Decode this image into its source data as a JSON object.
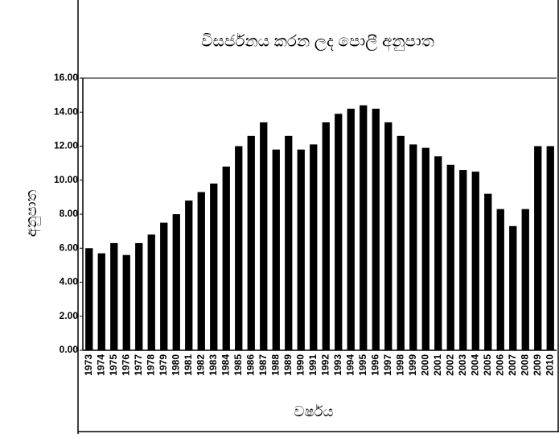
{
  "chart_data": {
    "type": "bar",
    "title": "විසර්ජනය කරන ලද පොලී අනුපාත",
    "x_label": "වර්ෂය",
    "y_label": "අනුපාත",
    "categories": [
      "1973",
      "1974",
      "1975",
      "1976",
      "1977",
      "1978",
      "1979",
      "1980",
      "1981",
      "1982",
      "1983",
      "1984",
      "1985",
      "1986",
      "1987",
      "1988",
      "1989",
      "1990",
      "1991",
      "1992",
      "1993",
      "1994",
      "1995",
      "1996",
      "1997",
      "1998",
      "1999",
      "2000",
      "2001",
      "2002",
      "2003",
      "2004",
      "2005",
      "2006",
      "2007",
      "2008",
      "2009",
      "2010"
    ],
    "values": [
      6.0,
      5.7,
      6.3,
      5.6,
      6.3,
      6.8,
      7.5,
      8.0,
      8.8,
      9.3,
      9.8,
      10.8,
      12.0,
      12.6,
      13.4,
      11.8,
      12.6,
      11.8,
      12.1,
      13.4,
      13.9,
      14.2,
      14.4,
      14.2,
      13.4,
      12.6,
      12.1,
      11.9,
      11.4,
      10.9,
      10.6,
      10.5,
      9.2,
      8.3,
      7.3,
      8.3,
      12.0,
      12.0
    ],
    "color": "#000000",
    "ylim": [
      0,
      16
    ],
    "yticks": [
      {
        "value": 0,
        "label": "0.00"
      },
      {
        "value": 2,
        "label": "2.00"
      },
      {
        "value": 4,
        "label": "4.00"
      },
      {
        "value": 6,
        "label": "6.00"
      },
      {
        "value": 8,
        "label": "8.00"
      },
      {
        "value": 10,
        "label": "10.00"
      },
      {
        "value": 12,
        "label": "12.00"
      },
      {
        "value": 14,
        "label": "14.00"
      },
      {
        "value": 16,
        "label": "16.00"
      }
    ],
    "grid": false
  }
}
